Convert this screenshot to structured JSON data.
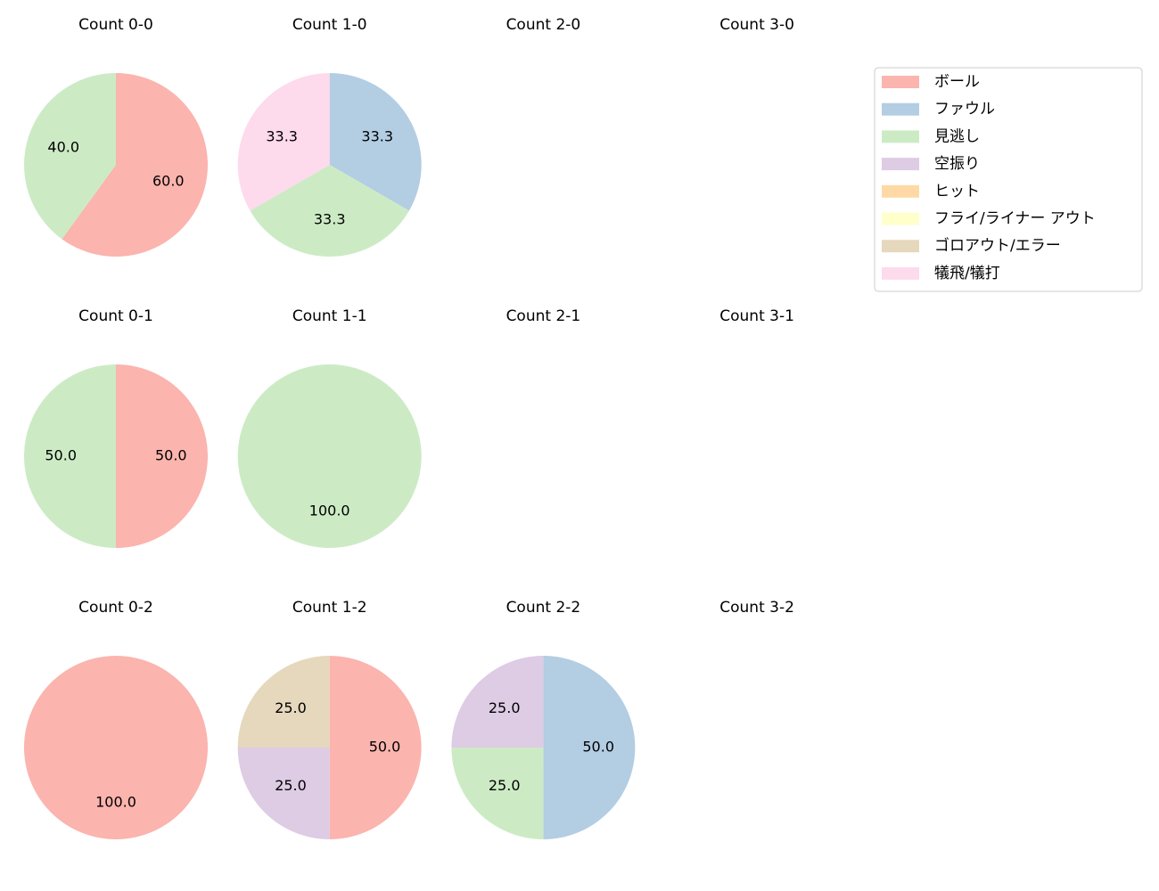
{
  "legend": {
    "labels": [
      "ボール",
      "ファウル",
      "見逃し",
      "空振り",
      "ヒット",
      "フライ/ライナー アウト",
      "ゴロアウト/エラー",
      "犠飛/犠打"
    ],
    "colors": [
      "#fbb4ae",
      "#b3cde3",
      "#ccebc5",
      "#decbe4",
      "#fed9a6",
      "#ffffcc",
      "#e5d8bd",
      "#fddaec"
    ]
  },
  "chart_data": [
    {
      "type": "pie",
      "title": "Count 0-0",
      "categories": [
        "ボール",
        "見逃し"
      ],
      "values": [
        60,
        40
      ],
      "value_labels": [
        "60.0",
        "40.0"
      ]
    },
    {
      "type": "pie",
      "title": "Count 1-0",
      "categories": [
        "ファウル",
        "見逃し",
        "犠飛/犠打"
      ],
      "values": [
        33.3,
        33.3,
        33.3
      ],
      "value_labels": [
        "33.3",
        "33.3",
        "33.3"
      ]
    },
    {
      "type": "pie",
      "title": "Count 2-0",
      "categories": [],
      "values": []
    },
    {
      "type": "pie",
      "title": "Count 3-0",
      "categories": [],
      "values": []
    },
    {
      "type": "pie",
      "title": "Count 0-1",
      "categories": [
        "ボール",
        "見逃し"
      ],
      "values": [
        50,
        50
      ],
      "value_labels": [
        "50.0",
        "50.0"
      ]
    },
    {
      "type": "pie",
      "title": "Count 1-1",
      "categories": [
        "見逃し"
      ],
      "values": [
        100
      ],
      "value_labels": [
        "100.0"
      ]
    },
    {
      "type": "pie",
      "title": "Count 2-1",
      "categories": [],
      "values": []
    },
    {
      "type": "pie",
      "title": "Count 3-1",
      "categories": [],
      "values": []
    },
    {
      "type": "pie",
      "title": "Count 0-2",
      "categories": [
        "ボール"
      ],
      "values": [
        100
      ],
      "value_labels": [
        "100.0"
      ]
    },
    {
      "type": "pie",
      "title": "Count 1-2",
      "categories": [
        "ボール",
        "空振り",
        "ゴロアウト/エラー"
      ],
      "values": [
        50,
        25,
        25
      ],
      "value_labels": [
        "50.0",
        "25.0",
        "25.0"
      ]
    },
    {
      "type": "pie",
      "title": "Count 2-2",
      "categories": [
        "ファウル",
        "見逃し",
        "空振り"
      ],
      "values": [
        50,
        25,
        25
      ],
      "value_labels": [
        "50.0",
        "25.0",
        "25.0"
      ]
    },
    {
      "type": "pie",
      "title": "Count 3-2",
      "categories": [],
      "values": []
    }
  ]
}
